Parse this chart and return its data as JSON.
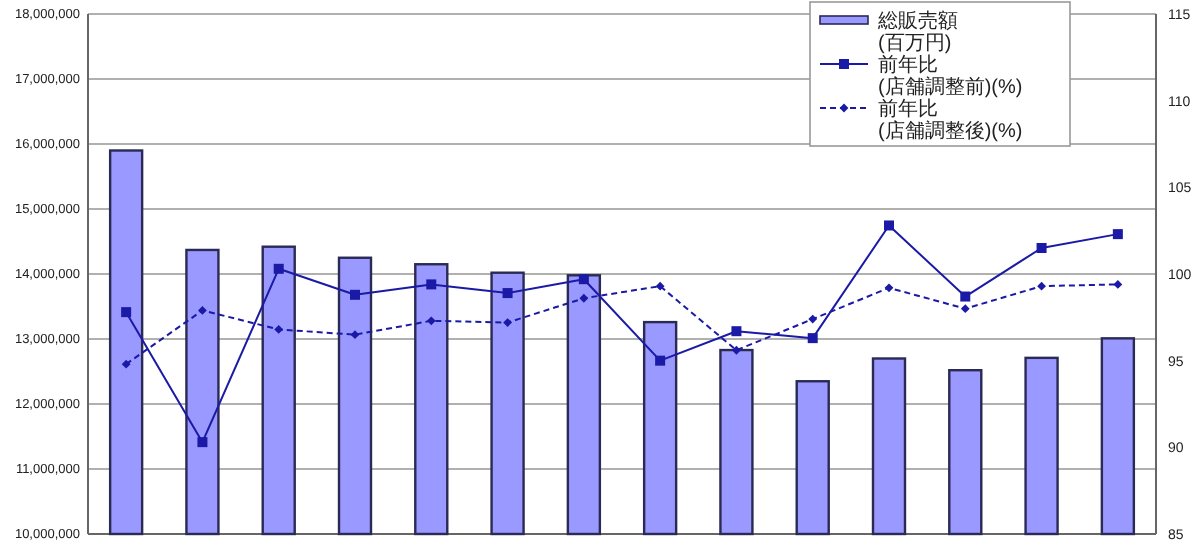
{
  "chart_data": {
    "type": "bar",
    "categories": [
      null,
      null,
      null,
      null,
      null,
      null,
      null,
      null,
      null,
      null,
      null,
      null,
      null,
      null
    ],
    "series": [
      {
        "name": "総販売額\n(百万円)",
        "color": "#9999ff",
        "values": [
          15900000,
          14370000,
          14420000,
          14250000,
          14150000,
          14020000,
          13980000,
          13260000,
          12830000,
          12350000,
          12700000,
          12520000,
          12710000,
          13010000
        ]
      },
      {
        "name": "前年比\n(店舗調整前)(%)",
        "type": "line",
        "axis": "y2",
        "marker": "square",
        "line_style": "solid",
        "color": "#1a1aa6",
        "values": [
          97.8,
          90.3,
          100.3,
          98.8,
          99.4,
          98.9,
          99.7,
          95.0,
          96.7,
          96.3,
          102.8,
          98.7,
          101.5,
          102.3
        ]
      },
      {
        "name": "前年比\n(店舗調整後)(%)",
        "type": "line",
        "axis": "y2",
        "marker": "diamond",
        "line_style": "dashed",
        "color": "#1a1aa6",
        "values": [
          94.8,
          97.9,
          96.8,
          96.5,
          97.3,
          97.2,
          98.6,
          99.3,
          95.6,
          97.4,
          99.2,
          98.0,
          99.3,
          99.4
        ]
      }
    ],
    "ylim": [
      10000000,
      18000000
    ],
    "yticks": [
      {
        "value": 10000000,
        "label": "10,000,000"
      },
      {
        "value": 11000000,
        "label": "11,000,000"
      },
      {
        "value": 12000000,
        "label": "12,000,000"
      },
      {
        "value": 13000000,
        "label": "13,000,000"
      },
      {
        "value": 14000000,
        "label": "14,000,000"
      },
      {
        "value": 15000000,
        "label": "15,000,000"
      },
      {
        "value": 16000000,
        "label": "16,000,000"
      },
      {
        "value": 17000000,
        "label": "17,000,000"
      },
      {
        "value": 18000000,
        "label": "18,000,000"
      }
    ],
    "y2lim": [
      85,
      115
    ],
    "y2ticks": [
      85,
      90,
      95,
      100,
      105,
      110,
      115
    ],
    "grid": "y",
    "legend": "top right"
  }
}
